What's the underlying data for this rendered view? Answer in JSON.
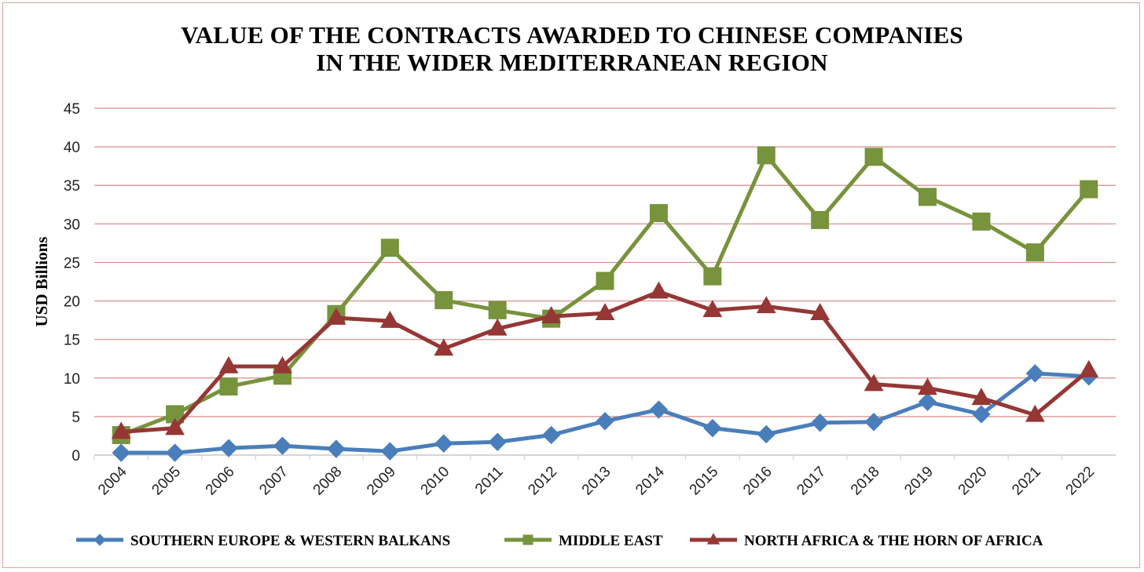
{
  "chart_data": {
    "type": "line",
    "title_lines": [
      "VALUE OF THE CONTRACTS AWARDED TO CHINESE COMPANIES",
      "IN THE WIDER MEDITERRANEAN REGION"
    ],
    "xlabel": "",
    "ylabel": "USD Billions",
    "ylim": [
      0,
      45
    ],
    "yticks": [
      0,
      5,
      10,
      15,
      20,
      25,
      30,
      35,
      40,
      45
    ],
    "grid": true,
    "legend_position": "bottom",
    "categories": [
      "2004",
      "2005",
      "2006",
      "2007",
      "2008",
      "2009",
      "2010",
      "2011",
      "2012",
      "2013",
      "2014",
      "2015",
      "2016",
      "2017",
      "2018",
      "2019",
      "2020",
      "2021",
      "2022"
    ],
    "series": [
      {
        "name": "SOUTHERN EUROPE & WESTERN BALKANS",
        "color": "#4a7ebb",
        "marker": "diamond",
        "values": [
          0.3,
          0.3,
          0.9,
          1.2,
          0.8,
          0.5,
          1.5,
          1.7,
          2.6,
          4.4,
          5.9,
          3.5,
          2.7,
          4.2,
          4.3,
          6.9,
          5.3,
          10.6,
          10.2
        ]
      },
      {
        "name": "MIDDLE EAST",
        "color": "#77933c",
        "marker": "square",
        "values": [
          2.6,
          5.3,
          8.9,
          10.3,
          18.3,
          26.9,
          20.1,
          18.8,
          17.7,
          22.6,
          31.4,
          23.2,
          38.9,
          30.5,
          38.7,
          33.5,
          30.3,
          26.3,
          34.5
        ]
      },
      {
        "name": "NORTH AFRICA & THE HORN OF AFRICA",
        "color": "#953735",
        "marker": "triangle",
        "values": [
          3.0,
          3.5,
          11.5,
          11.5,
          17.8,
          17.4,
          13.8,
          16.4,
          18.0,
          18.4,
          21.2,
          18.8,
          19.3,
          18.4,
          9.2,
          8.7,
          7.4,
          5.2,
          11.0
        ]
      }
    ]
  }
}
